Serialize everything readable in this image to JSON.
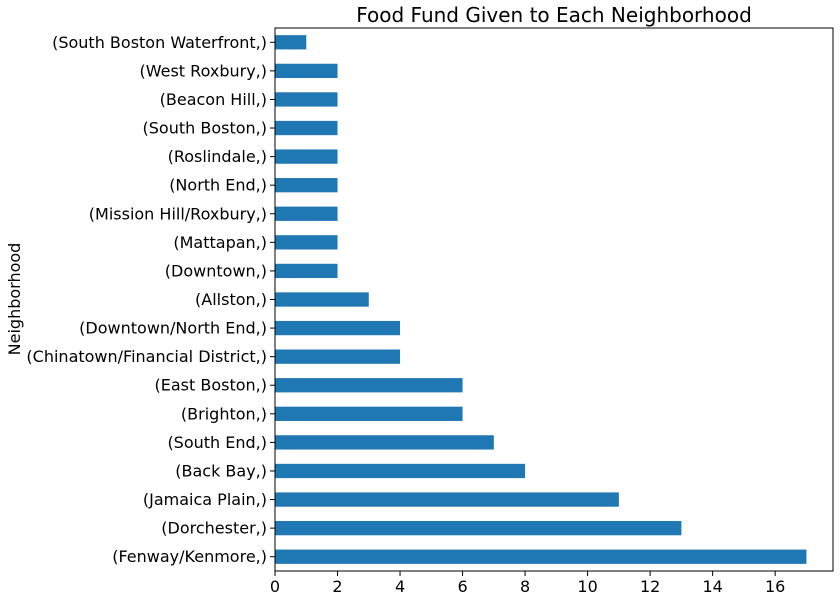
{
  "chart_data": {
    "type": "bar",
    "orientation": "horizontal",
    "title": "Food Fund Given to Each Neighborhood",
    "ylabel": "Neighborhood",
    "xlabel": "",
    "xlim": [
      0,
      17.85
    ],
    "xticks": [
      0,
      2,
      4,
      6,
      8,
      10,
      12,
      14,
      16
    ],
    "grid": false,
    "color": "#1f77b4",
    "categories": [
      "(Fenway/Kenmore,)",
      "(Dorchester,)",
      "(Jamaica Plain,)",
      "(Back Bay,)",
      "(South End,)",
      "(Brighton,)",
      "(East Boston,)",
      "(Chinatown/Financial District,)",
      "(Downtown/North End,)",
      "(Allston,)",
      "(Downtown,)",
      "(Mattapan,)",
      "(Mission Hill/Roxbury,)",
      "(North End,)",
      "(Roslindale,)",
      "(South Boston,)",
      "(Beacon Hill,)",
      "(West Roxbury,)",
      "(South Boston Waterfront,)"
    ],
    "values": [
      17,
      13,
      11,
      8,
      7,
      6,
      6,
      4,
      4,
      3,
      2,
      2,
      2,
      2,
      2,
      2,
      2,
      2,
      1
    ]
  }
}
